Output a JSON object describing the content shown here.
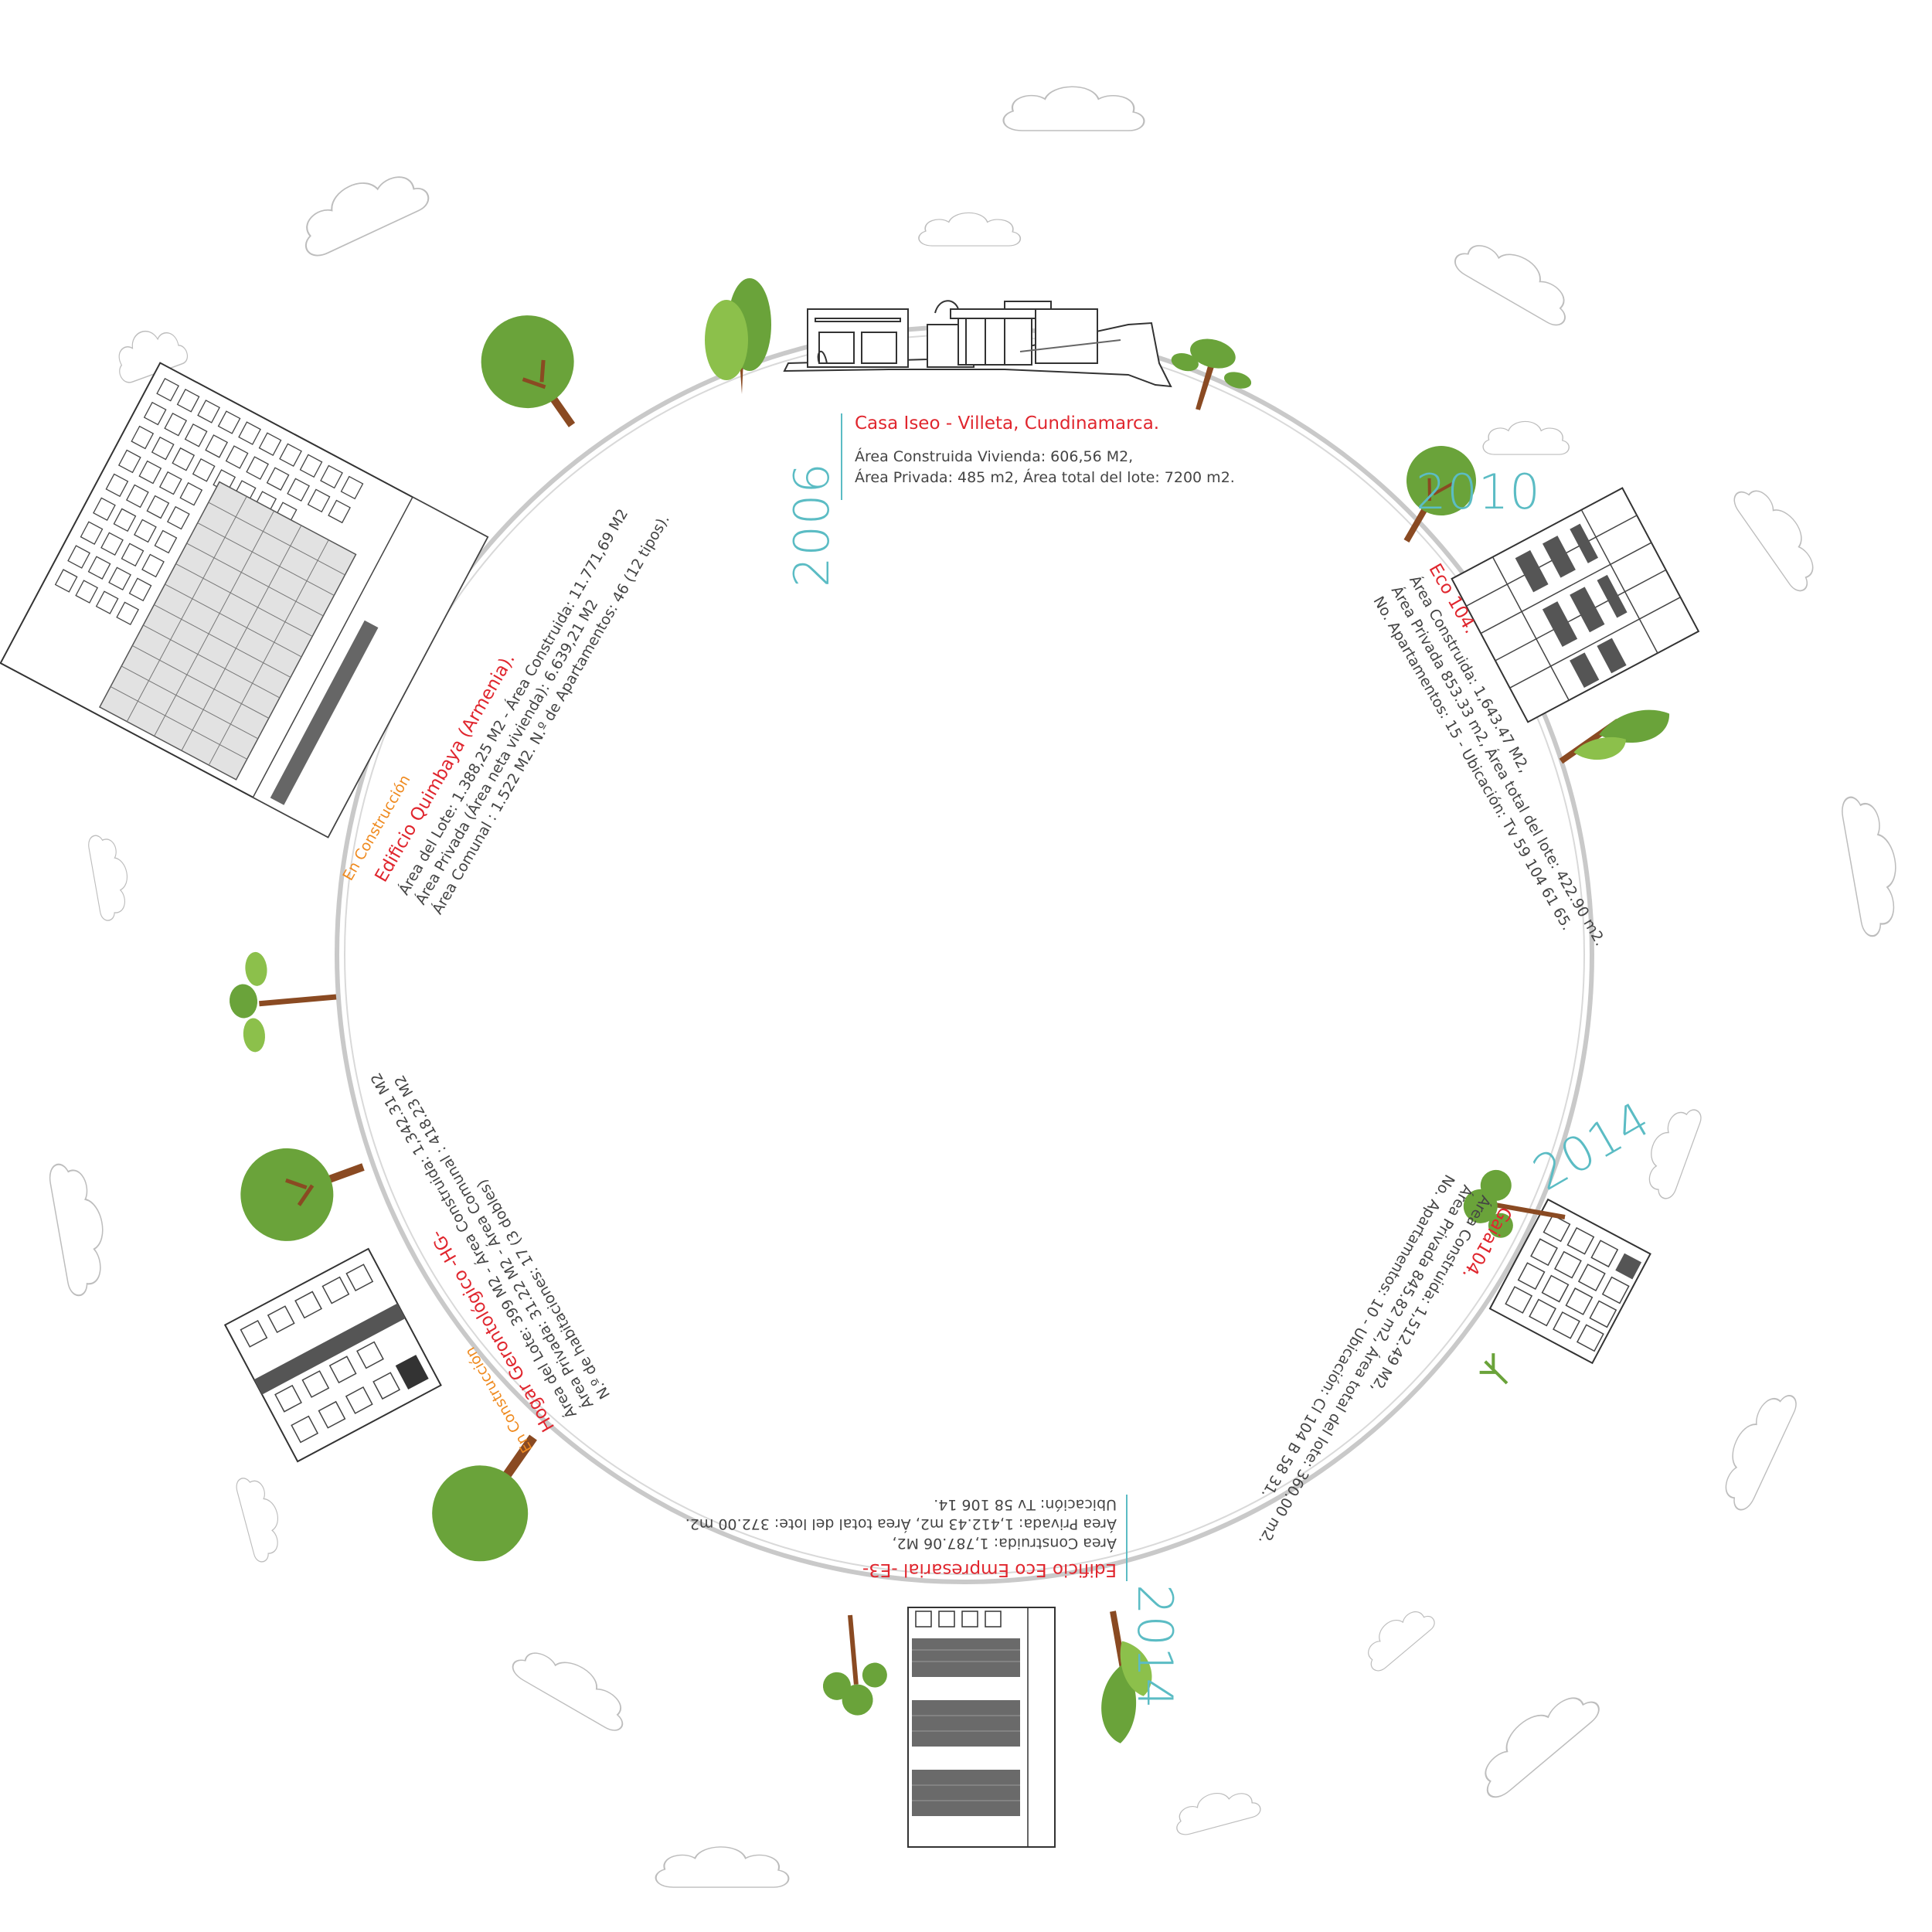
{
  "colors": {
    "ring": "#c9c9c9",
    "year": "#5bbcc4",
    "title": "#e0262e",
    "body_text": "#444444",
    "status": "#ef8a1f",
    "foliage": "#6aa33a",
    "foliage_light": "#8cc04b",
    "trunk": "#8a4a22",
    "cloud_stroke": "#bdbdbd"
  },
  "projects": [
    {
      "id": "casa-iseo",
      "year": "2006",
      "name": "Casa Iseo - Villeta, Cundinamarca.",
      "lines": [
        "Área Construida Vivienda: 606,56 M2,",
        "Área Privada: 485 m2, Área total del lote: 7200 m2."
      ],
      "status": ""
    },
    {
      "id": "eco-104",
      "year": "2010",
      "name": "Eco 104.",
      "lines": [
        "Área Construida: 1,643.47 M2,",
        "Área Privada 853.33 m2, Área total del lote: 422.90 m2.",
        "No. Apartamentos: 15 - Ubicación: Tv 59 104 61 65."
      ],
      "status": ""
    },
    {
      "id": "gaia-104",
      "year": "2014",
      "name": "Gaia104.",
      "lines": [
        "Área Construida: 1,512.49 M2,",
        "Área Privada 845.82 m2, Área total del lote: 360.00 m2.",
        "No. Apartamentos: 10 - Ubicación: Cl 104 B 58 31."
      ],
      "status": ""
    },
    {
      "id": "eco-empresarial",
      "year": "2014",
      "name": "Edificio Eco Empresarial -E3-",
      "lines": [
        "Área Construida: 1,787.06 M2,",
        "Área Privada: 1,412.43 m2, Área total del lote: 372.00 m2.",
        "Ubicación: Tv 58 106 14."
      ],
      "status": ""
    },
    {
      "id": "hogar-gerontologico",
      "year": "",
      "name": "Hogar Gerontológico -HG-",
      "lines": [
        "Área del Lote: 399 M2 - Área Construida: 1,342.31 M2",
        "Área Privada: 31.22 M2 - Área Comunal : 418.23 M2",
        "N.º de habitaciones: 17 (3 dobles)"
      ],
      "status": "En Construcción"
    },
    {
      "id": "quimbaya",
      "year": "",
      "name": "Edificio Quimbaya (Armenia).",
      "lines": [
        "Área del Lote: 1.388,25 M2 - Área Construida: 11.771,69 M2",
        "Área Privada (Área neta vivienda): 6.639,21 M2",
        "Área Comunal : 1.522 M2. N.º de Apartamentos: 46 (12 tipos)."
      ],
      "status": "En Construcción"
    }
  ]
}
